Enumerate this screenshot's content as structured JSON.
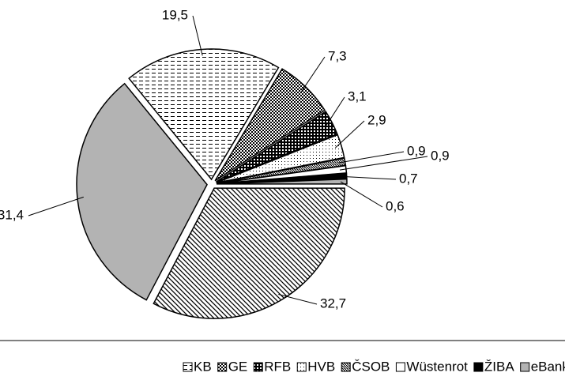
{
  "chart_data": {
    "type": "pie",
    "categories": [
      "KB",
      "GE",
      "RFB",
      "HVB",
      "ČSOB",
      "Wüstenrot",
      "ŽIBA",
      "eBanka",
      null,
      null
    ],
    "values": [
      19.5,
      7.3,
      3.1,
      2.9,
      0.9,
      0.9,
      0.7,
      0.6,
      32.7,
      31.4
    ],
    "value_labels": [
      "19,5",
      "7,3",
      "3,1",
      "2,9",
      "0,9",
      "0,9",
      "0,7",
      "0,6",
      "32,7",
      "31,4"
    ],
    "legend": "bottom"
  }
}
